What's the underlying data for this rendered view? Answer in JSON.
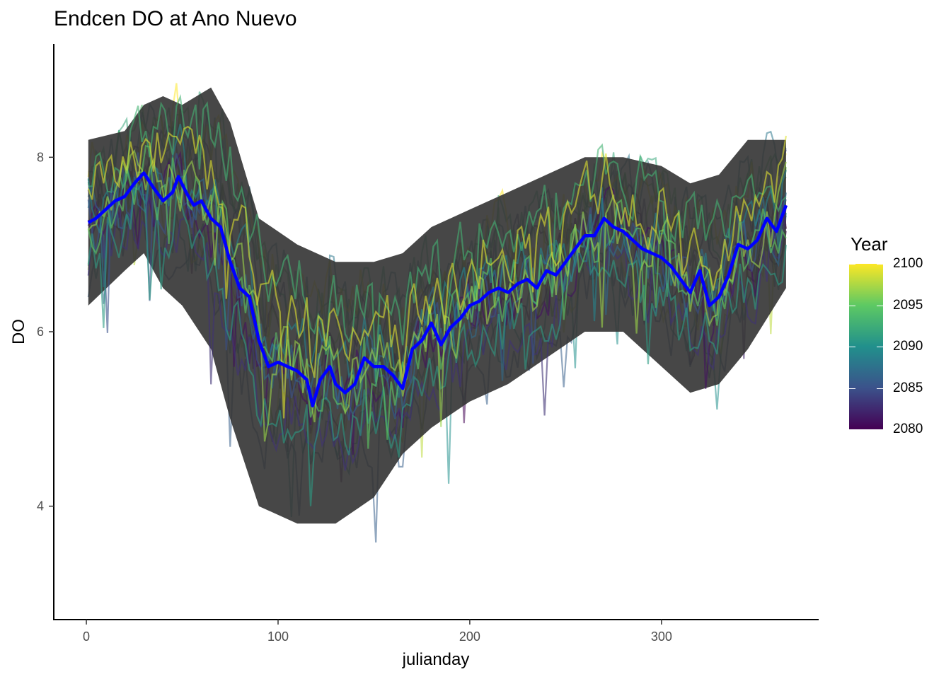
{
  "chart_data": {
    "type": "line",
    "title": "Endcen DO at Ano Nuevo",
    "xlabel": "julianday",
    "ylabel": "DO",
    "xlim": [
      -17,
      382
    ],
    "ylim": [
      2.7,
      9.3
    ],
    "x_ticks": [
      0,
      100,
      200,
      300
    ],
    "y_ticks": [
      4,
      6,
      8
    ],
    "grid": false,
    "legend": {
      "title": "Year",
      "position": "right",
      "type": "colorbar",
      "range": [
        2080,
        2100
      ],
      "ticks": [
        2080,
        2085,
        2090,
        2095,
        2100
      ],
      "colors": [
        "#440154",
        "#3b528b",
        "#21908c",
        "#5dc963",
        "#fde725"
      ]
    },
    "band": {
      "color": "#333333",
      "x": [
        1,
        20,
        30,
        40,
        50,
        65,
        75,
        90,
        110,
        130,
        150,
        165,
        180,
        200,
        220,
        240,
        260,
        280,
        300,
        315,
        330,
        345,
        365
      ],
      "lower": [
        6.3,
        6.7,
        6.9,
        6.5,
        6.3,
        5.8,
        5.0,
        4.0,
        3.8,
        3.8,
        4.1,
        4.6,
        4.9,
        5.2,
        5.4,
        5.7,
        6.0,
        6.0,
        5.6,
        5.3,
        5.4,
        5.8,
        6.5
      ],
      "upper": [
        8.2,
        8.3,
        8.6,
        8.7,
        8.6,
        8.8,
        8.4,
        7.3,
        7.0,
        6.8,
        6.8,
        6.9,
        7.2,
        7.4,
        7.6,
        7.8,
        8.0,
        8.0,
        7.9,
        7.7,
        7.8,
        8.2,
        8.2
      ]
    },
    "mean_series": {
      "name": "",
      "color": "#0000ff",
      "x": [
        1,
        5,
        10,
        15,
        20,
        25,
        30,
        35,
        40,
        45,
        48,
        52,
        56,
        60,
        65,
        70,
        75,
        80,
        85,
        90,
        95,
        100,
        105,
        110,
        115,
        118,
        122,
        127,
        130,
        135,
        140,
        145,
        150,
        155,
        160,
        165,
        170,
        175,
        180,
        185,
        190,
        195,
        200,
        205,
        210,
        215,
        220,
        225,
        230,
        235,
        240,
        245,
        250,
        255,
        260,
        265,
        270,
        275,
        280,
        285,
        290,
        295,
        300,
        305,
        310,
        315,
        320,
        325,
        330,
        335,
        340,
        345,
        350,
        355,
        360,
        365
      ],
      "y": [
        7.25,
        7.3,
        7.4,
        7.5,
        7.55,
        7.7,
        7.82,
        7.65,
        7.5,
        7.6,
        7.78,
        7.6,
        7.45,
        7.5,
        7.3,
        7.2,
        6.8,
        6.5,
        6.4,
        5.9,
        5.6,
        5.65,
        5.6,
        5.55,
        5.45,
        5.15,
        5.45,
        5.6,
        5.4,
        5.3,
        5.4,
        5.7,
        5.6,
        5.6,
        5.5,
        5.35,
        5.8,
        5.9,
        6.1,
        5.85,
        6.05,
        6.15,
        6.3,
        6.35,
        6.45,
        6.5,
        6.45,
        6.55,
        6.6,
        6.5,
        6.7,
        6.65,
        6.8,
        6.95,
        7.1,
        7.1,
        7.3,
        7.2,
        7.15,
        7.05,
        6.95,
        6.9,
        6.85,
        6.75,
        6.6,
        6.45,
        6.7,
        6.3,
        6.4,
        6.65,
        7.0,
        6.95,
        7.05,
        7.3,
        7.15,
        7.45
      ]
    }
  }
}
